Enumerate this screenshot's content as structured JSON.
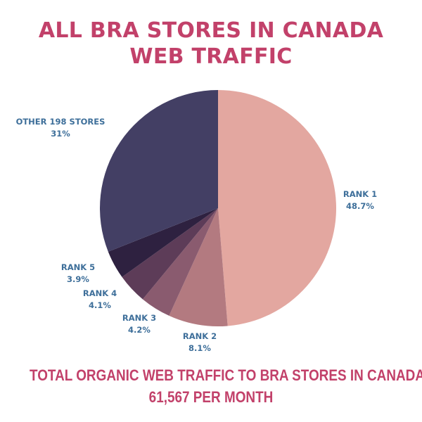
{
  "title_line1": "ALL BRA STORES IN CANADA",
  "title_line2": "WEB TRAFFIC",
  "footer_line1": "TOTAL ORGANIC WEB TRAFFIC TO BRA STORES IN CANADA:",
  "footer_line2": "61,567 PER MONTH",
  "chart_data": {
    "type": "pie",
    "title": "ALL BRA STORES IN CANADA WEB TRAFFIC",
    "slices": [
      {
        "label": "RANK 1",
        "value_label": "48.7%",
        "value": 48.7,
        "color": "#e3a7a0"
      },
      {
        "label": "RANK 2",
        "value_label": "8.1%",
        "value": 8.1,
        "color": "#b37a80"
      },
      {
        "label": "RANK 3",
        "value_label": "4.2%",
        "value": 4.2,
        "color": "#8a5b6f"
      },
      {
        "label": "RANK 4",
        "value_label": "4.1%",
        "value": 4.1,
        "color": "#5d3c58"
      },
      {
        "label": "RANK 5",
        "value_label": "3.9%",
        "value": 3.9,
        "color": "#2e2140"
      },
      {
        "label": "OTHER 198 STORES",
        "value_label": "31%",
        "value": 31,
        "color": "#433f64"
      }
    ]
  }
}
